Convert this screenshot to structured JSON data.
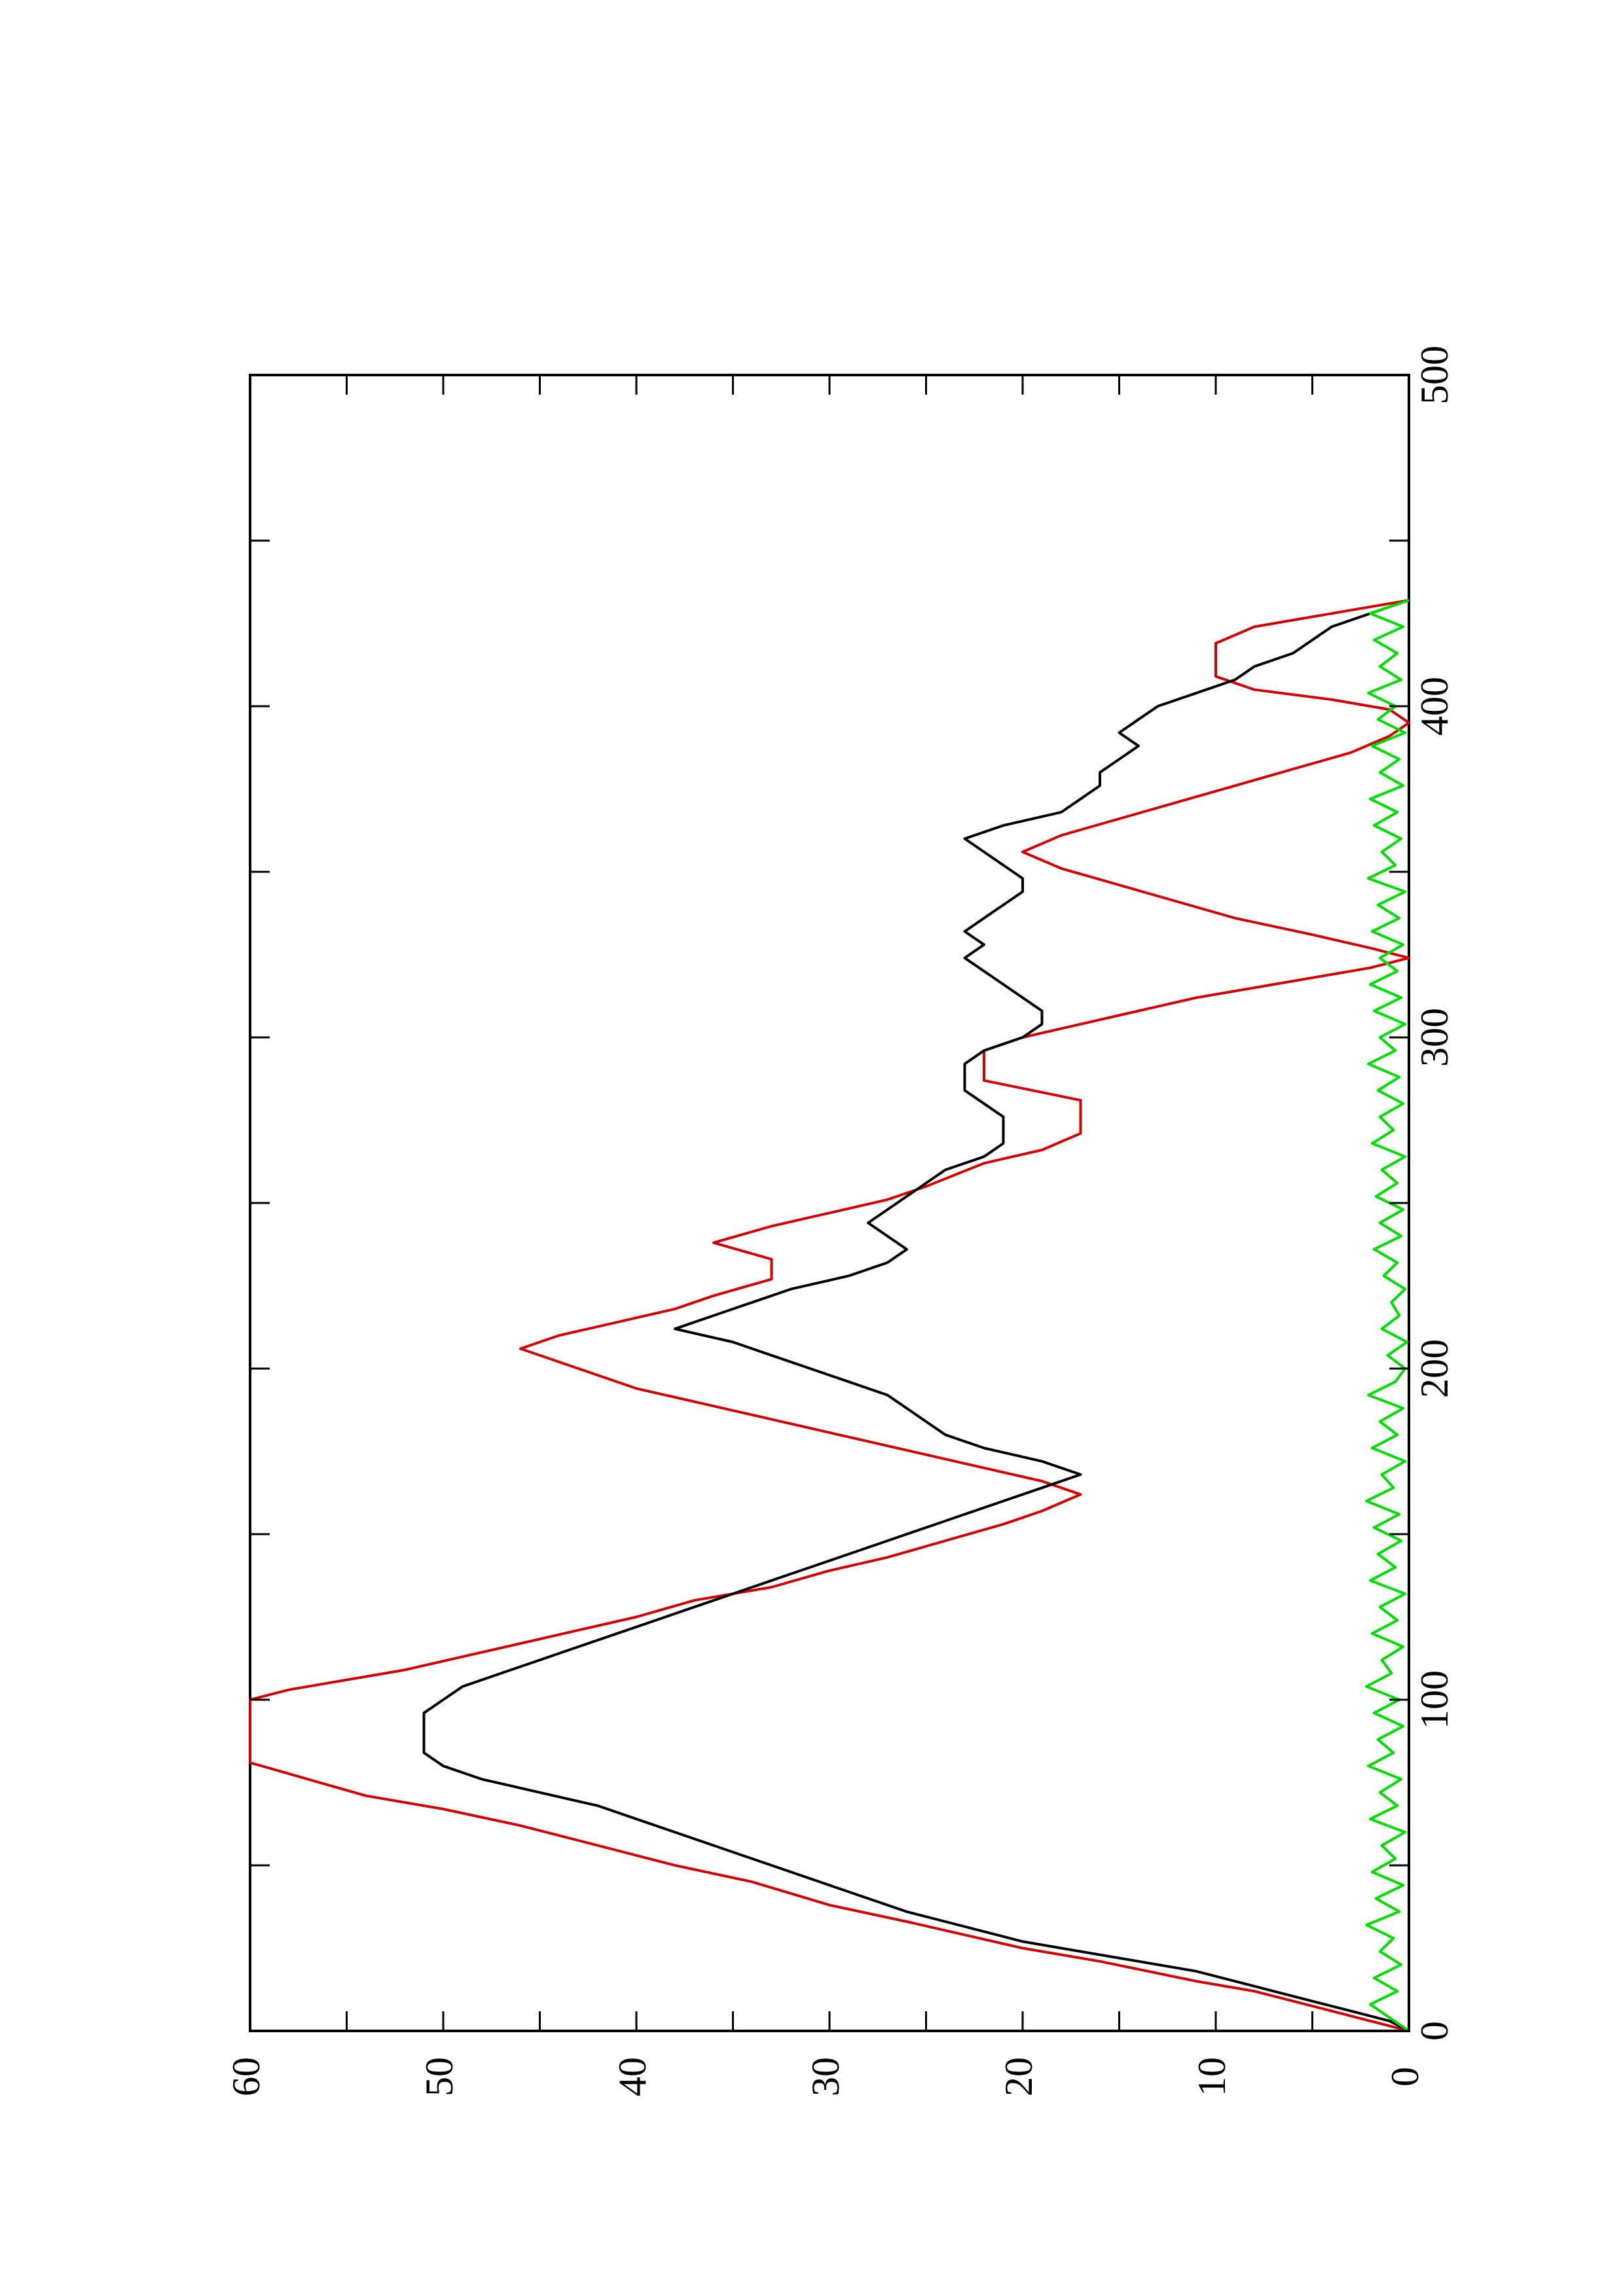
{
  "chart_data": {
    "type": "line",
    "orientation": "rotated-90-counterclockwise",
    "xlim": [
      0,
      500
    ],
    "ylim": [
      0,
      60
    ],
    "x_ticks": [
      0,
      100,
      200,
      300,
      400,
      500
    ],
    "y_ticks": [
      0,
      10,
      20,
      30,
      40,
      50,
      60
    ],
    "x_tick_labels": [
      "0",
      "100",
      "200",
      "300",
      "400",
      "500"
    ],
    "y_tick_labels": [
      "0",
      "10",
      "20",
      "30",
      "40",
      "50",
      "60"
    ],
    "grid": false,
    "legend": "none",
    "series": [
      {
        "color": "#d40000",
        "style": "step",
        "x": [
          0,
          3,
          6,
          12,
          15,
          21,
          25,
          33,
          38,
          45,
          50,
          56,
          62,
          67,
          71,
          76,
          81,
          86,
          91,
          96,
          100,
          103,
          106,
          109,
          113,
          117,
          121,
          125,
          130,
          134,
          139,
          143,
          148,
          153,
          157,
          162,
          166,
          170,
          174,
          178,
          182,
          186,
          190,
          194,
          198,
          202,
          206,
          210,
          214,
          218,
          222,
          227,
          233,
          238,
          243,
          247,
          251,
          255,
          262,
          266,
          271,
          276,
          281,
          287,
          290,
          293,
          296,
          300,
          304,
          308,
          312,
          315,
          318,
          321,
          324,
          327,
          331,
          336,
          341,
          346,
          351,
          356,
          361,
          366,
          371,
          376,
          381,
          386,
          391,
          395,
          399,
          402,
          405,
          409,
          414,
          419,
          424,
          427,
          430,
          432
        ],
        "y": [
          0,
          2,
          4,
          8,
          11,
          16,
          20,
          26,
          30,
          34,
          38,
          42,
          46,
          50,
          54,
          57,
          60,
          60,
          60,
          60,
          60,
          58,
          55,
          52,
          49,
          46,
          43,
          40,
          37,
          33,
          30,
          27,
          24,
          21,
          19,
          17,
          19,
          22,
          25,
          28,
          31,
          34,
          37,
          40,
          42,
          44,
          46,
          44,
          41,
          38,
          36,
          33,
          33,
          36,
          33,
          30,
          27,
          25,
          22,
          19,
          17,
          17,
          17,
          22,
          22,
          22,
          22,
          20,
          17,
          14,
          11,
          8,
          5,
          2,
          0,
          2,
          5,
          9,
          12,
          15,
          18,
          20,
          18,
          15,
          12,
          9,
          6,
          3,
          1,
          0,
          1,
          4,
          8,
          10,
          10,
          10,
          8,
          5,
          2,
          0
        ]
      },
      {
        "color": "#000000",
        "style": "line",
        "x": [
          0,
          3,
          6,
          9,
          12,
          15,
          18,
          21,
          24,
          27,
          30,
          33,
          36,
          40,
          44,
          48,
          52,
          56,
          60,
          64,
          68,
          72,
          76,
          80,
          84,
          88,
          92,
          96,
          100,
          104,
          108,
          112,
          116,
          120,
          124,
          128,
          132,
          136,
          140,
          144,
          148,
          152,
          156,
          160,
          164,
          168,
          172,
          176,
          180,
          184,
          188,
          192,
          196,
          200,
          204,
          208,
          212,
          216,
          220,
          224,
          228,
          232,
          236,
          240,
          244,
          248,
          252,
          256,
          260,
          264,
          268,
          272,
          276,
          280,
          284,
          288,
          292,
          296,
          300,
          304,
          308,
          312,
          316,
          320,
          324,
          328,
          332,
          336,
          340,
          344,
          348,
          352,
          356,
          360,
          364,
          368,
          372,
          376,
          380,
          384,
          388,
          392,
          396,
          400,
          404,
          408,
          412,
          416,
          420,
          424,
          428,
          432
        ],
        "y": [
          0,
          1,
          3,
          5,
          7,
          9,
          11,
          14,
          17,
          20,
          22,
          24,
          26,
          28,
          30,
          32,
          34,
          36,
          38,
          40,
          42,
          45,
          48,
          50,
          51,
          51,
          51,
          51,
          50,
          49,
          47,
          45,
          43,
          41,
          39,
          37,
          35,
          33,
          31,
          29,
          27,
          25,
          23,
          21,
          19,
          17,
          19,
          22,
          24,
          25,
          26,
          27,
          29,
          31,
          33,
          35,
          38,
          36,
          34,
          32,
          29,
          27,
          26,
          27,
          28,
          27,
          26,
          25,
          24,
          22,
          21,
          21,
          21,
          22,
          23,
          23,
          23,
          22,
          20,
          19,
          19,
          20,
          21,
          22,
          23,
          22,
          23,
          22,
          21,
          20,
          20,
          21,
          22,
          23,
          21,
          18,
          17,
          16,
          16,
          15,
          14,
          15,
          14,
          13,
          11,
          9,
          8,
          6,
          5,
          4,
          2,
          0
        ]
      },
      {
        "color": "#00dd00",
        "style": "line",
        "x": [
          0,
          4,
          8,
          12,
          16,
          20,
          24,
          28,
          32,
          36,
          40,
          44,
          48,
          52,
          56,
          60,
          64,
          68,
          72,
          76,
          80,
          84,
          88,
          92,
          96,
          100,
          104,
          108,
          112,
          116,
          120,
          124,
          128,
          132,
          136,
          140,
          144,
          148,
          152,
          156,
          160,
          164,
          168,
          172,
          176,
          180,
          184,
          188,
          192,
          196,
          200,
          204,
          208,
          212,
          216,
          220,
          224,
          228,
          232,
          236,
          240,
          244,
          248,
          252,
          256,
          260,
          264,
          268,
          272,
          276,
          280,
          284,
          288,
          292,
          296,
          300,
          304,
          308,
          312,
          316,
          320,
          324,
          328,
          332,
          336,
          340,
          344,
          348,
          352,
          356,
          360,
          364,
          368,
          372,
          376,
          380,
          384,
          388,
          392,
          396,
          400,
          404,
          408,
          412,
          416,
          420,
          424,
          428,
          432
        ],
        "y": [
          0,
          1,
          2,
          0.6,
          1.8,
          0.4,
          1.5,
          0.8,
          2.2,
          0.5,
          1.7,
          0.3,
          1.9,
          0.7,
          1.4,
          0.2,
          2.0,
          0.6,
          1.5,
          0.4,
          2.1,
          0.8,
          1.6,
          0.3,
          1.8,
          0.5,
          2.2,
          0.9,
          1.4,
          0.3,
          1.9,
          0.6,
          1.5,
          0.2,
          2.0,
          0.7,
          1.6,
          0.4,
          1.8,
          0.5,
          2.2,
          0.8,
          1.4,
          0.2,
          1.9,
          0.6,
          1.5,
          0.3,
          2.1,
          0.7,
          0.2,
          1.1,
          0.1,
          1.4,
          0.5,
          0.9,
          0.2,
          1.3,
          0.6,
          1.8,
          0.4,
          1.5,
          0.3,
          1.7,
          0.6,
          1.4,
          0.2,
          1.9,
          0.8,
          1.5,
          0.3,
          1.6,
          0.5,
          2.1,
          0.7,
          1.5,
          0.2,
          1.8,
          0.4,
          2.0,
          0.6,
          1.5,
          0.3,
          1.9,
          0.5,
          1.6,
          0.2,
          2.1,
          0.7,
          1.4,
          0.4,
          1.8,
          0.6,
          2.0,
          0.3,
          1.5,
          0.5,
          1.9,
          0.2,
          1.6,
          0.7,
          2.1,
          0.4,
          1.5,
          0.6,
          1.8,
          0.3,
          2.0,
          0
        ]
      }
    ]
  }
}
